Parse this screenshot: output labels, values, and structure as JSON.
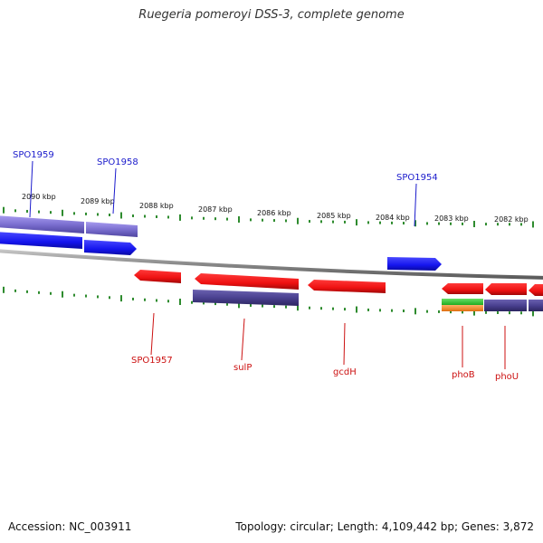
{
  "title": "Ruegeria pomeroyi DSS-3, complete genome",
  "accession": "Accession: NC_003911",
  "summary": "Topology: circular; Length: 4,109,442 bp; Genes: 3,872",
  "colors": {
    "forward_label": "#1a1acc",
    "reverse_label": "#cc1111",
    "tick": "#2e8b2e",
    "backbone": "#999999",
    "gene_blue": "#1515ee",
    "gene_lavender": "#7b6fd0",
    "gene_red": "#ee1111",
    "gene_navy": "#4a4190",
    "gene_green": "#33cc33",
    "gene_orange": "#ff8c1a"
  },
  "scale_labels": [
    "2090 kbp",
    "2089 kbp",
    "2088 kbp",
    "2087 kbp",
    "2086 kbp",
    "2085 kbp",
    "2084 kbp",
    "2083 kbp",
    "2082 kbp"
  ],
  "forward_gene_labels": [
    "SPO1959",
    "SPO1958",
    "SPO1954"
  ],
  "reverse_gene_labels": [
    "SPO1957",
    "sulP",
    "gcdH",
    "phoB",
    "phoU"
  ]
}
